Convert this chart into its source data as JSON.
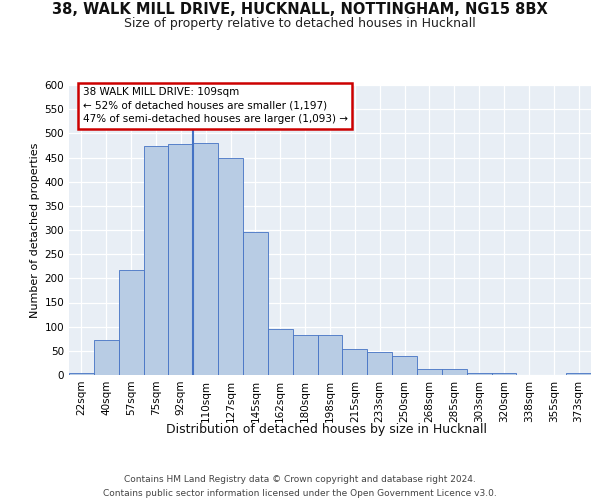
{
  "title_line1": "38, WALK MILL DRIVE, HUCKNALL, NOTTINGHAM, NG15 8BX",
  "title_line2": "Size of property relative to detached houses in Hucknall",
  "xlabel": "Distribution of detached houses by size in Hucknall",
  "ylabel": "Number of detached properties",
  "categories": [
    "22sqm",
    "40sqm",
    "57sqm",
    "75sqm",
    "92sqm",
    "110sqm",
    "127sqm",
    "145sqm",
    "162sqm",
    "180sqm",
    "198sqm",
    "215sqm",
    "233sqm",
    "250sqm",
    "268sqm",
    "285sqm",
    "303sqm",
    "320sqm",
    "338sqm",
    "355sqm",
    "373sqm"
  ],
  "values": [
    5,
    72,
    218,
    473,
    478,
    480,
    450,
    295,
    95,
    82,
    82,
    53,
    47,
    40,
    13,
    12,
    5,
    5,
    0,
    0,
    5
  ],
  "bar_color": "#b8cce4",
  "bar_edge_color": "#4472c4",
  "highlight_index": 5,
  "vline_color": "#4472c4",
  "annotation_text": "38 WALK MILL DRIVE: 109sqm\n← 52% of detached houses are smaller (1,197)\n47% of semi-detached houses are larger (1,093) →",
  "annotation_box_facecolor": "#ffffff",
  "annotation_box_edgecolor": "#cc0000",
  "footer_line1": "Contains HM Land Registry data © Crown copyright and database right 2024.",
  "footer_line2": "Contains public sector information licensed under the Open Government Licence v3.0.",
  "ylim": [
    0,
    600
  ],
  "yticks": [
    0,
    50,
    100,
    150,
    200,
    250,
    300,
    350,
    400,
    450,
    500,
    550,
    600
  ],
  "bg_color": "#e8eef5",
  "grid_color": "#ffffff",
  "title1_fontsize": 10.5,
  "title2_fontsize": 9,
  "xlabel_fontsize": 9,
  "ylabel_fontsize": 8,
  "tick_fontsize": 7.5,
  "annot_fontsize": 7.5,
  "footer_fontsize": 6.5
}
